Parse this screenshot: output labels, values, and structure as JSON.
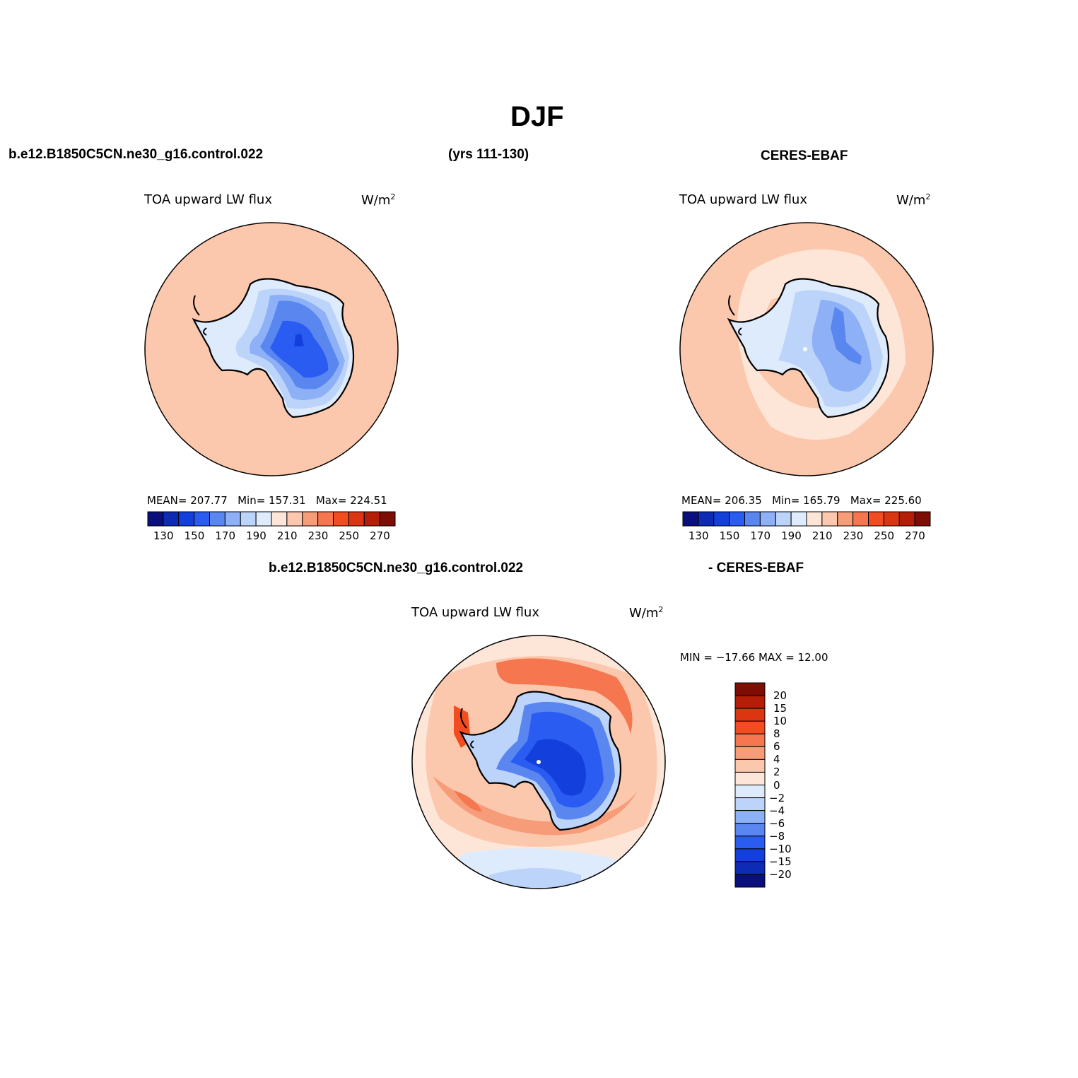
{
  "title": "DJF",
  "top": {
    "left_case": "b.e12.B1850C5CN.ne30_g16.control.022",
    "years": "(yrs 111-130)",
    "right_case": "CERES-EBAF"
  },
  "panel_model": {
    "variable": "TOA upward LW flux",
    "units": "W/m",
    "units_exp": "2",
    "stats": {
      "mean_label": "MEAN=",
      "mean": "207.77",
      "min_label": "Min=",
      "min": "157.31",
      "max_label": "Max=",
      "max": "224.51"
    }
  },
  "panel_obs": {
    "variable": "TOA upward LW flux",
    "units": "W/m",
    "units_exp": "2",
    "stats": {
      "mean_label": "MEAN=",
      "mean": "206.35",
      "min_label": "Min=",
      "min": "165.79",
      "max_label": "Max=",
      "max": "225.60"
    }
  },
  "diff_header": {
    "left": "b.e12.B1850C5CN.ne30_g16.control.022",
    "right": "- CERES-EBAF"
  },
  "panel_diff": {
    "variable": "TOA upward LW flux",
    "units": "W/m",
    "units_exp": "2",
    "minmax": "MIN = −17.66 MAX =   12.00"
  },
  "colorbar_abs": {
    "colors": [
      "#0a0f7d",
      "#0d2bb4",
      "#1340dc",
      "#2b5cf2",
      "#5a86f0",
      "#8db0f6",
      "#bcd3fa",
      "#deebfd",
      "#fde6d7",
      "#fcc8ad",
      "#f79c78",
      "#f5764f",
      "#f24d20",
      "#dc3512",
      "#b41e07",
      "#7d0d05"
    ],
    "labels": [
      "130",
      "150",
      "170",
      "190",
      "210",
      "230",
      "250",
      "270"
    ]
  },
  "colorbar_diff": {
    "colors": [
      "#7d0d05",
      "#b41e07",
      "#dc3512",
      "#f24d20",
      "#f5764f",
      "#f79c78",
      "#fcc8ad",
      "#fde6d7",
      "#deebfd",
      "#bcd3fa",
      "#8db0f6",
      "#5a86f0",
      "#2b5cf2",
      "#1340dc",
      "#0d2bb4",
      "#0a0f7d"
    ],
    "labels": [
      "20",
      "15",
      "10",
      "8",
      "6",
      "4",
      "2",
      "0",
      "−2",
      "−4",
      "−6",
      "−8",
      "−10",
      "−15",
      "−20"
    ]
  },
  "map_colors": {
    "ocean_abs": "#fcc8ad",
    "ocean_abs_obs": "#fde6d7",
    "ocean_warm": "#f79c78",
    "ice_1": "#deebfd",
    "ice_2": "#bcd3fa",
    "ice_3": "#8db0f6",
    "ice_4": "#5a86f0",
    "ice_5": "#2b5cf2",
    "ice_6": "#1340dc"
  }
}
